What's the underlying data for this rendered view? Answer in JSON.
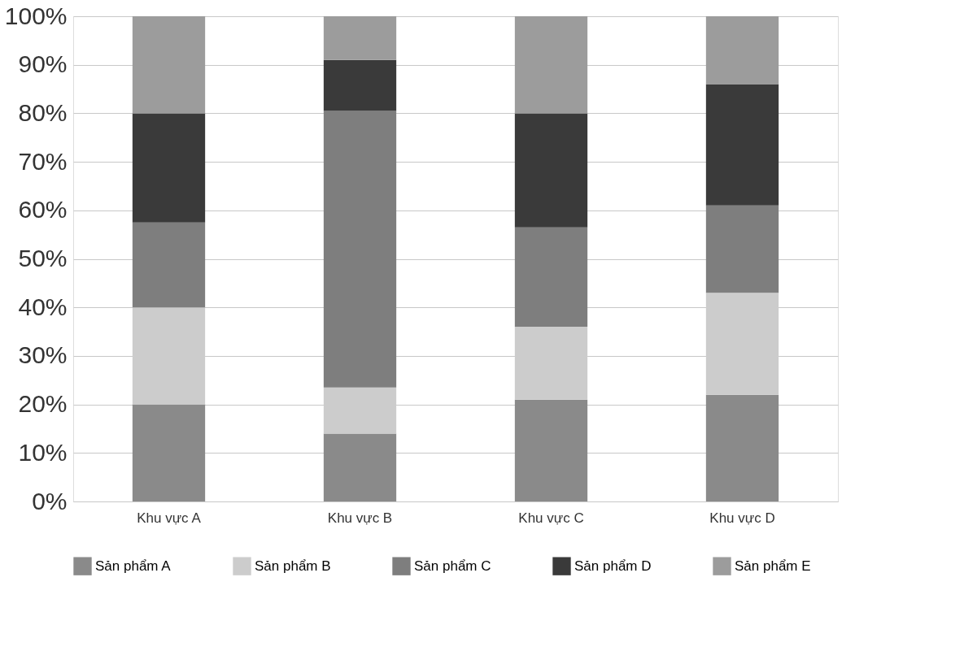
{
  "chart_data": {
    "type": "bar",
    "stacked": true,
    "categories": [
      "Khu vực A",
      "Khu vực B",
      "Khu vực C",
      "Khu vực D"
    ],
    "series": [
      {
        "name": "Sản phẩm A",
        "color": "#8a8a8a",
        "values": [
          20,
          14,
          21,
          22
        ]
      },
      {
        "name": "Sản phẩm B",
        "color": "#cccccc",
        "values": [
          20,
          9.5,
          15,
          21
        ]
      },
      {
        "name": "Sản phẩm C",
        "color": "#7e7e7e",
        "values": [
          17.5,
          57,
          20.5,
          18
        ]
      },
      {
        "name": "Sản phẩm D",
        "color": "#3a3a3a",
        "values": [
          22.5,
          10.5,
          23.5,
          25
        ]
      },
      {
        "name": "Sản phẩm E",
        "color": "#9c9c9c",
        "values": [
          20,
          9,
          20,
          14
        ]
      }
    ],
    "ylim": [
      0,
      100
    ],
    "yticks": [
      {
        "value": 0,
        "label": "0%"
      },
      {
        "value": 10,
        "label": "10%"
      },
      {
        "value": 20,
        "label": "20%"
      },
      {
        "value": 30,
        "label": "30%"
      },
      {
        "value": 40,
        "label": "40%"
      },
      {
        "value": 50,
        "label": "50%"
      },
      {
        "value": 60,
        "label": "60%"
      },
      {
        "value": 70,
        "label": "70%"
      },
      {
        "value": 80,
        "label": "80%"
      },
      {
        "value": 90,
        "label": "90%"
      },
      {
        "value": 100,
        "label": "100%"
      }
    ],
    "grid": "y",
    "legend": "bottom"
  }
}
